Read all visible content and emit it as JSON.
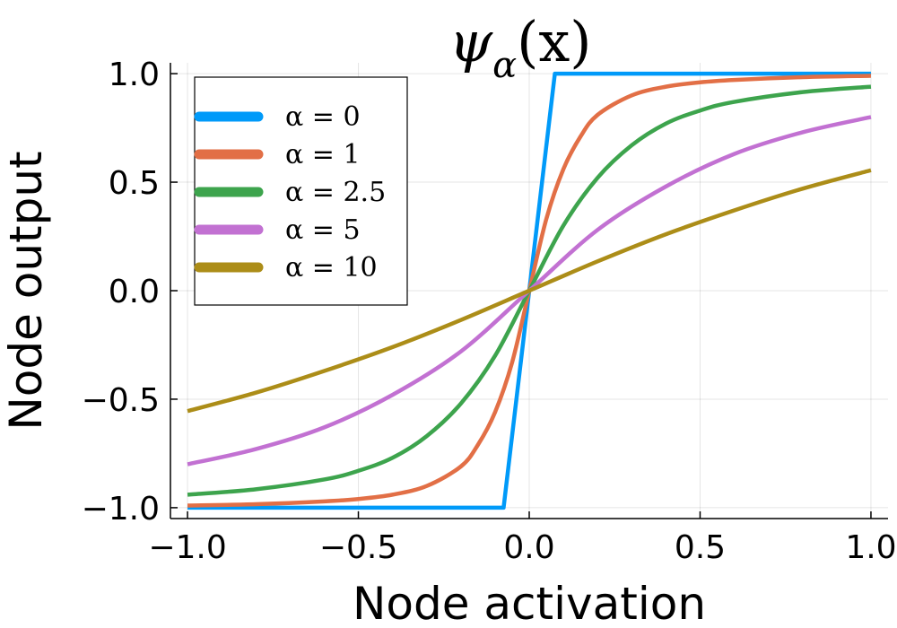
{
  "chart_data": {
    "type": "line",
    "title": "ψα(x)",
    "title_main": "ψ",
    "title_sub": "α",
    "title_arg": "(x)",
    "xlabel": "Node activation",
    "ylabel": "Node output",
    "xlim": [
      -1.05,
      1.05
    ],
    "ylim": [
      -1.05,
      1.05
    ],
    "xticks": [
      -1.0,
      -0.5,
      0.0,
      0.5,
      1.0
    ],
    "yticks": [
      -1.0,
      -0.5,
      0.0,
      0.5,
      1.0
    ],
    "xtick_labels": [
      "−1.0",
      "−0.5",
      "0.0",
      "0.5",
      "1.0"
    ],
    "ytick_labels": [
      "−1.0",
      "−0.5",
      "0.0",
      "0.5",
      "1.0"
    ],
    "grid": true,
    "legend_position": "top-left",
    "series": [
      {
        "name": "α = 0",
        "alpha": 0,
        "color": "#009af9",
        "x": [
          -1.0,
          -0.075,
          0.075,
          1.0
        ],
        "y": [
          -1.0,
          -1.0,
          1.0,
          1.0
        ]
      },
      {
        "name": "α = 1",
        "alpha": 1,
        "color": "#e26f46",
        "x": [
          -1.0,
          -0.8,
          -0.6,
          -0.5,
          -0.4,
          -0.3,
          -0.2,
          -0.15,
          -0.1,
          -0.05,
          0.0,
          0.05,
          0.1,
          0.15,
          0.2,
          0.3,
          0.4,
          0.5,
          0.6,
          0.8,
          1.0
        ],
        "y": [
          -0.99,
          -0.984,
          -0.971,
          -0.96,
          -0.94,
          -0.9,
          -0.81,
          -0.71,
          -0.56,
          -0.33,
          0.0,
          0.33,
          0.56,
          0.71,
          0.81,
          0.9,
          0.94,
          0.96,
          0.971,
          0.984,
          0.99
        ]
      },
      {
        "name": "α = 2.5",
        "alpha": 2.5,
        "color": "#3da44d",
        "x": [
          -1.0,
          -0.8,
          -0.6,
          -0.5,
          -0.4,
          -0.3,
          -0.2,
          -0.1,
          0.0,
          0.1,
          0.2,
          0.3,
          0.4,
          0.5,
          0.6,
          0.8,
          1.0
        ],
        "y": [
          -0.94,
          -0.915,
          -0.87,
          -0.83,
          -0.77,
          -0.67,
          -0.52,
          -0.3,
          0.0,
          0.3,
          0.52,
          0.67,
          0.77,
          0.83,
          0.87,
          0.915,
          0.94
        ]
      },
      {
        "name": "α = 5",
        "alpha": 5,
        "color": "#c271d2",
        "x": [
          -1.0,
          -0.8,
          -0.6,
          -0.4,
          -0.2,
          0.0,
          0.2,
          0.4,
          0.6,
          0.8,
          1.0
        ],
        "y": [
          -0.8,
          -0.73,
          -0.63,
          -0.48,
          -0.28,
          0.0,
          0.28,
          0.48,
          0.63,
          0.73,
          0.8
        ]
      },
      {
        "name": "α = 10",
        "alpha": 10,
        "color": "#ac8d18",
        "x": [
          -1.0,
          -0.8,
          -0.6,
          -0.4,
          -0.2,
          0.0,
          0.2,
          0.4,
          0.6,
          0.8,
          1.0
        ],
        "y": [
          -0.555,
          -0.47,
          -0.37,
          -0.26,
          -0.135,
          0.0,
          0.135,
          0.26,
          0.37,
          0.47,
          0.555
        ]
      }
    ]
  }
}
